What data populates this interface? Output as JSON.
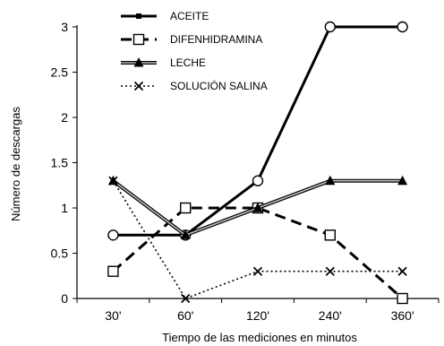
{
  "chart_data": {
    "type": "line",
    "categories": [
      "30'",
      "60'",
      "120'",
      "240'",
      "360'"
    ],
    "xlabel": "Tiempo de las mediciones en minutos",
    "ylabel": "Número de descargas",
    "ylim": [
      0,
      3
    ],
    "yticks": [
      "0",
      "0.5",
      "1",
      "1.5",
      "2",
      "2.5",
      "3"
    ],
    "grid": false,
    "legend_position": "top-left",
    "series": [
      {
        "name": "ACEITE",
        "values": [
          0.7,
          0.7,
          1.3,
          3.0,
          3.0
        ],
        "line": "solid-thick",
        "marker": "circle-open",
        "color": "#000000"
      },
      {
        "name": "DIFENHIDRAMINA",
        "values": [
          0.3,
          1.0,
          1.0,
          0.7,
          0.0
        ],
        "line": "dashed",
        "marker": "square-open",
        "color": "#000000"
      },
      {
        "name": "LECHE",
        "values": [
          1.3,
          0.7,
          1.0,
          1.3,
          1.3
        ],
        "line": "double",
        "marker": "triangle-filled",
        "color": "#000000"
      },
      {
        "name": "SOLUCIÓN SALINA",
        "values": [
          1.3,
          0.0,
          0.3,
          0.3,
          0.3
        ],
        "line": "dotted",
        "marker": "x",
        "color": "#000000"
      }
    ]
  }
}
